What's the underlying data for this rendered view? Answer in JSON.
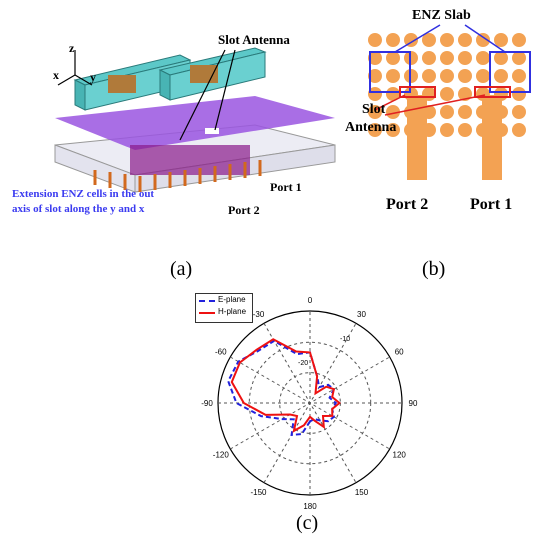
{
  "panel_a": {
    "axis_z": "z",
    "axis_x": "x",
    "axis_y": "y",
    "slot_antenna_label": "Slot Antenna",
    "enz_note_line1": "Extension ENZ cells in the out",
    "enz_note_line2": "axis of slot along the y and x",
    "port1_label": "Port 1",
    "port2_label": "Port 2",
    "caption": "(a)"
  },
  "panel_b": {
    "enz_slab_label": "ENZ Slab",
    "slot_label_line1": "Slot",
    "slot_label_line2": "Antenna",
    "port2_label": "Port 2",
    "port1_label": "Port 1",
    "caption": "(b)"
  },
  "panel_c": {
    "caption": "(c)",
    "legend": [
      "E-plane",
      "H-plane"
    ],
    "angle_labels": {
      "a0": "0",
      "a30": "30",
      "a60": "60",
      "a90": "90",
      "a120": "120",
      "a150": "150",
      "a180": "180",
      "am150": "-150",
      "am120": "-120",
      "am90": "-90",
      "am60": "-60",
      "am30": "-30"
    },
    "radial_labels": {
      "r10": "-10",
      "r20": "-20"
    },
    "colors": {
      "e_plane": "#2222dd",
      "h_plane": "#ee1111"
    }
  },
  "chart_data": {
    "type": "polar",
    "title": "",
    "angle_ticks_deg": [
      -150,
      -120,
      -90,
      -60,
      -30,
      0,
      30,
      60,
      90,
      120,
      150,
      180
    ],
    "radial_ticks_dB": [
      -10,
      -20
    ],
    "series": [
      {
        "name": "E-plane",
        "style": "dashed",
        "theta_deg": [
          -180,
          -165,
          -150,
          -135,
          -120,
          -105,
          -90,
          -75,
          -60,
          -45,
          -30,
          -15,
          0,
          15,
          30,
          45,
          60,
          75,
          90,
          105,
          120,
          135,
          150,
          165
        ],
        "r_norm": [
          0.2,
          0.35,
          0.4,
          0.25,
          0.35,
          0.55,
          0.8,
          0.92,
          0.9,
          0.8,
          0.78,
          0.55,
          0.55,
          0.3,
          0.2,
          0.28,
          0.3,
          0.22,
          0.28,
          0.25,
          0.3,
          0.28,
          0.22,
          0.18
        ]
      },
      {
        "name": "H-plane",
        "style": "solid",
        "theta_deg": [
          -180,
          -165,
          -150,
          -135,
          -120,
          -105,
          -90,
          -75,
          -60,
          -45,
          -30,
          -15,
          0,
          15,
          30,
          45,
          60,
          75,
          90,
          105,
          120,
          135,
          150,
          165
        ],
        "r_norm": [
          0.15,
          0.25,
          0.35,
          0.2,
          0.25,
          0.5,
          0.72,
          0.88,
          0.88,
          0.82,
          0.8,
          0.58,
          0.55,
          0.3,
          0.12,
          0.25,
          0.3,
          0.25,
          0.32,
          0.25,
          0.28,
          0.2,
          0.3,
          0.2
        ]
      }
    ]
  }
}
